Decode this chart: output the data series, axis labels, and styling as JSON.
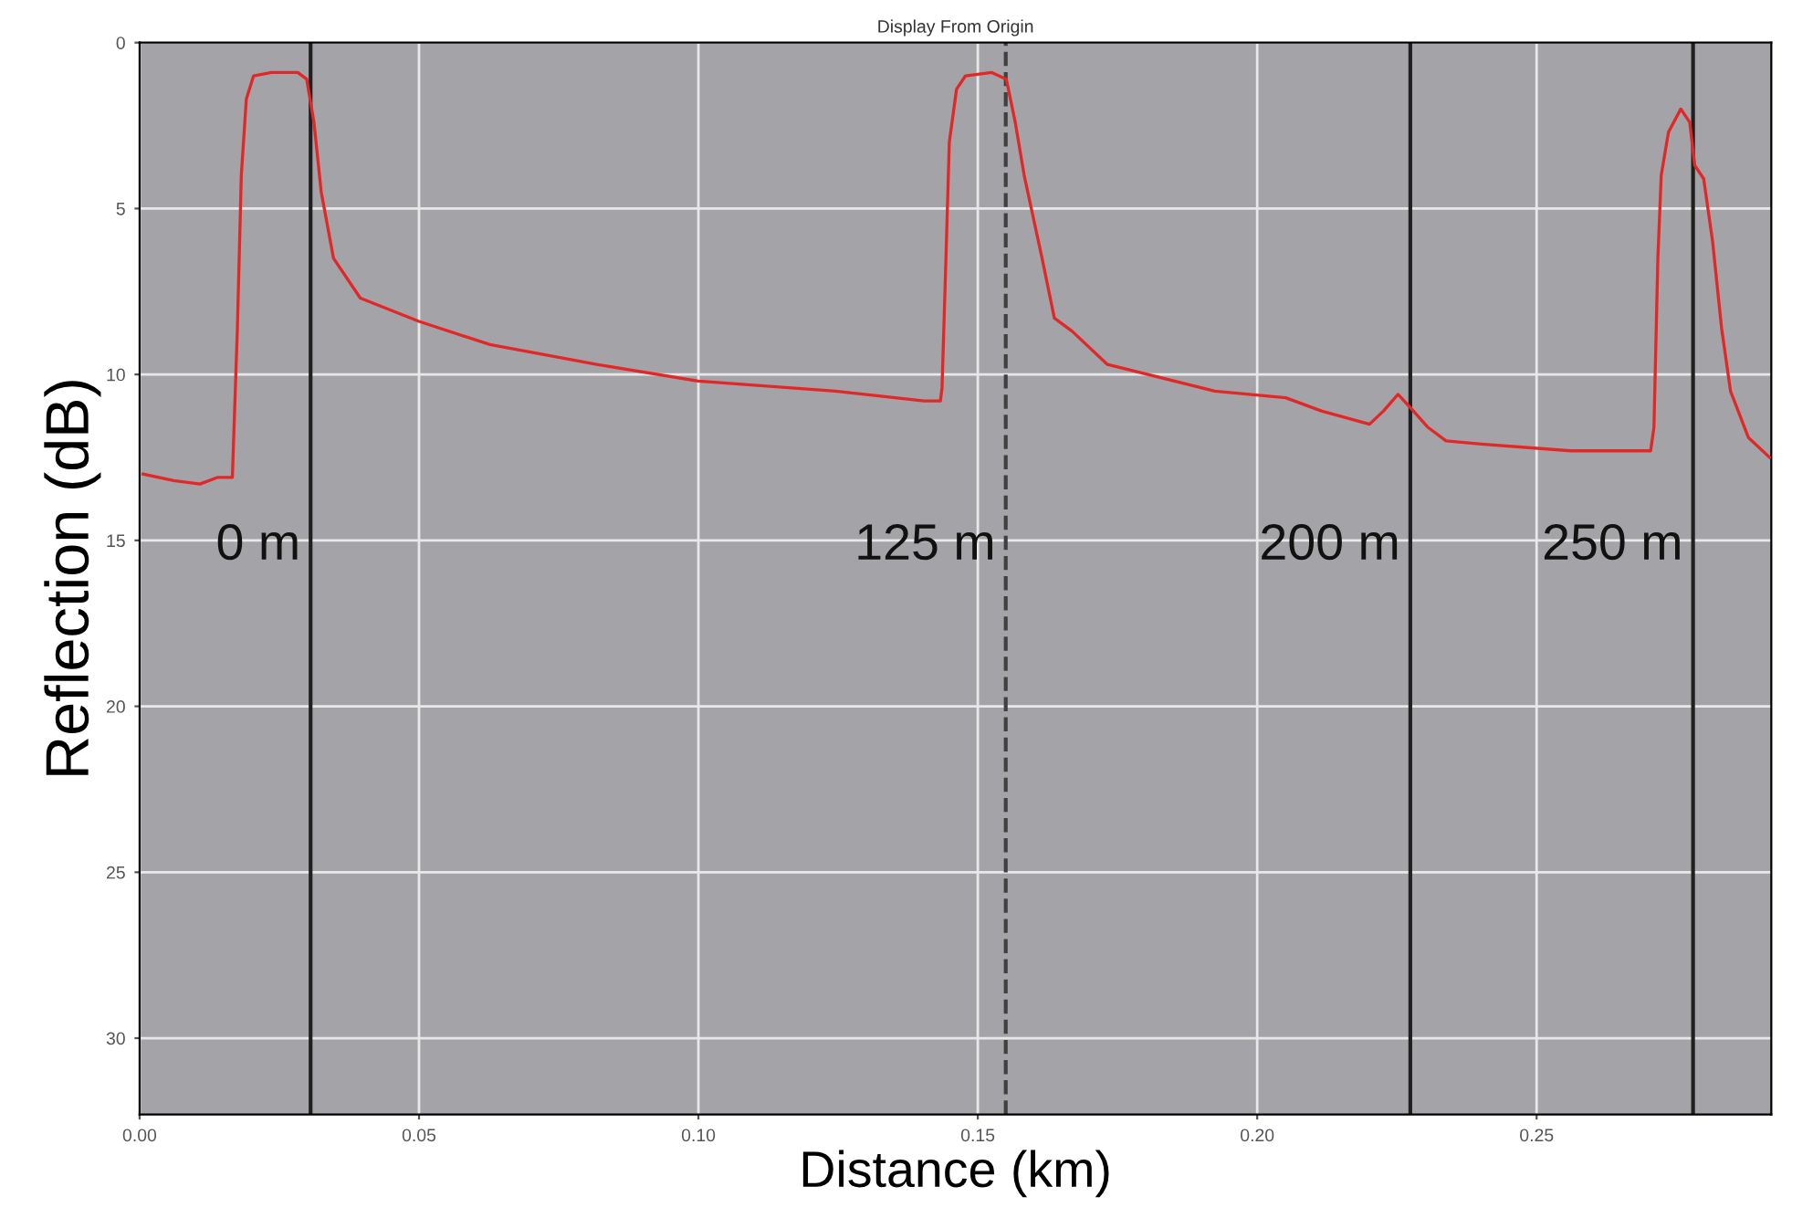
{
  "chart_data": {
    "type": "line",
    "title": "Display From Origin",
    "xlabel": "Distance (km)",
    "ylabel": "Reflection (dB)",
    "x": [
      0.0006,
      0.0061,
      0.0108,
      0.014,
      0.0166,
      0.0169,
      0.0175,
      0.0182,
      0.0191,
      0.0204,
      0.0236,
      0.0283,
      0.0299,
      0.0312,
      0.0325,
      0.0347,
      0.0395,
      0.05,
      0.0627,
      0.0818,
      0.1,
      0.1245,
      0.1404,
      0.1433,
      0.1436,
      0.1443,
      0.1449,
      0.1462,
      0.1478,
      0.1525,
      0.1551,
      0.1567,
      0.1583,
      0.1615,
      0.1637,
      0.1669,
      0.1732,
      0.1924,
      0.2051,
      0.2115,
      0.2201,
      0.2226,
      0.2252,
      0.2274,
      0.2306,
      0.2338,
      0.2401,
      0.2561,
      0.2704,
      0.271,
      0.2717,
      0.2723,
      0.2736,
      0.2758,
      0.2774,
      0.2783,
      0.2799,
      0.2815,
      0.2831,
      0.2847,
      0.2879,
      0.2917
    ],
    "series": [
      {
        "color": "#e02828",
        "values": [
          13.0,
          13.2,
          13.3,
          13.1,
          13.1,
          11.6,
          8.6,
          4.0,
          1.7,
          1.0,
          0.9,
          0.9,
          1.1,
          2.4,
          4.5,
          6.5,
          7.7,
          8.4,
          9.1,
          9.7,
          10.2,
          10.5,
          10.8,
          10.8,
          10.4,
          6.5,
          3.0,
          1.4,
          1.0,
          0.9,
          1.1,
          2.4,
          4.0,
          6.5,
          8.3,
          8.7,
          9.7,
          10.5,
          10.7,
          11.1,
          11.5,
          11.1,
          10.6,
          11.0,
          11.6,
          12.0,
          12.1,
          12.3,
          12.3,
          11.6,
          6.5,
          4.0,
          2.7,
          2.0,
          2.4,
          3.7,
          4.1,
          6.0,
          8.6,
          10.5,
          11.9,
          12.5
        ]
      }
    ],
    "xlim": [
      0,
      0.292
    ],
    "ylim": [
      32.3,
      0
    ],
    "xticks": [
      {
        "value": 0,
        "label": "0.00"
      },
      {
        "value": 0.05,
        "label": "0.05"
      },
      {
        "value": 0.1,
        "label": "0.10"
      },
      {
        "value": 0.15,
        "label": "0.15"
      },
      {
        "value": 0.2,
        "label": "0.20"
      },
      {
        "value": 0.25,
        "label": "0.25"
      }
    ],
    "yticks": [
      0,
      5,
      10,
      15,
      20,
      25,
      30
    ],
    "grid": true,
    "ref_lines": [
      {
        "axis": "x",
        "value": 0.0306,
        "label": "0 m",
        "color": "#202020",
        "line_style": "solid"
      },
      {
        "axis": "x",
        "value": 0.155,
        "label": "125 m",
        "color": "#404040",
        "line_style": "dashed"
      },
      {
        "axis": "x",
        "value": 0.2274,
        "label": "200 m",
        "color": "#202020",
        "line_style": "solid"
      },
      {
        "axis": "x",
        "value": 0.278,
        "label": "250 m",
        "color": "#202020",
        "line_style": "solid"
      }
    ]
  }
}
